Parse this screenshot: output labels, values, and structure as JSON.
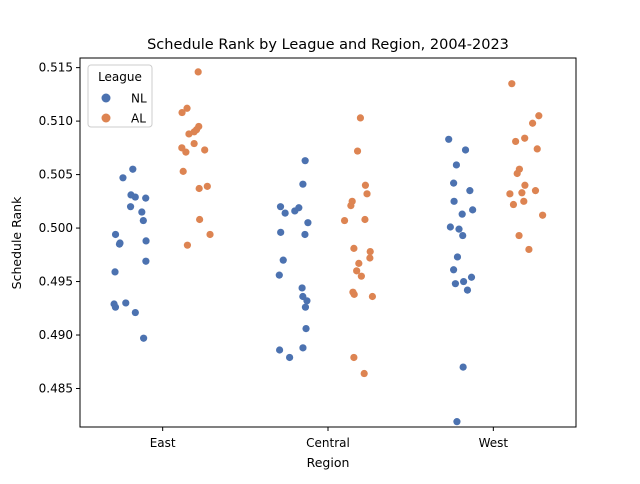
{
  "chart_data": {
    "type": "scatter",
    "subtype": "strip",
    "title": "Schedule Rank by League and Region, 2004-2023",
    "xlabel": "Region",
    "ylabel": "Schedule Rank",
    "categories": [
      "East",
      "Central",
      "West"
    ],
    "ylim": [
      0.4814,
      0.5159
    ],
    "yticks": [
      0.485,
      0.49,
      0.495,
      0.5,
      0.505,
      0.51,
      0.515
    ],
    "ytick_labels": [
      "0.485",
      "0.490",
      "0.495",
      "0.500",
      "0.505",
      "0.510",
      "0.515"
    ],
    "grid": false,
    "legend": {
      "title": "League",
      "position": "top-left"
    },
    "series": [
      {
        "name": "NL",
        "color": "#4c72b0",
        "values": {
          "East": [
            0.5055,
            0.5047,
            0.5031,
            0.5028,
            0.5029,
            0.502,
            0.5015,
            0.5007,
            0.4994,
            0.4988,
            0.4986,
            0.4985,
            0.4969,
            0.4959,
            0.493,
            0.4929,
            0.4926,
            0.4921,
            0.4897
          ],
          "Central": [
            0.5063,
            0.5041,
            0.502,
            0.5019,
            0.5016,
            0.5014,
            0.5005,
            0.4996,
            0.4994,
            0.497,
            0.4956,
            0.4944,
            0.4936,
            0.4932,
            0.4926,
            0.4906,
            0.4888,
            0.4886,
            0.4879
          ],
          "West": [
            0.5083,
            0.5073,
            0.5059,
            0.5042,
            0.5035,
            0.5025,
            0.5017,
            0.5013,
            0.5001,
            0.4999,
            0.4993,
            0.4973,
            0.4961,
            0.4954,
            0.495,
            0.4948,
            0.4942,
            0.487,
            0.4819
          ]
        }
      },
      {
        "name": "AL",
        "color": "#dd8452",
        "values": {
          "East": [
            0.5146,
            0.5112,
            0.5108,
            0.5095,
            0.5092,
            0.509,
            0.5088,
            0.5079,
            0.5075,
            0.5073,
            0.5071,
            0.5053,
            0.5039,
            0.5037,
            0.5008,
            0.4994,
            0.4984
          ],
          "Central": [
            0.5103,
            0.5072,
            0.504,
            0.5032,
            0.5025,
            0.5021,
            0.5008,
            0.5007,
            0.4981,
            0.4978,
            0.4972,
            0.4967,
            0.496,
            0.4955,
            0.494,
            0.4938,
            0.4936,
            0.4879,
            0.4864
          ],
          "West": [
            0.5135,
            0.5105,
            0.5098,
            0.5084,
            0.5081,
            0.5074,
            0.5055,
            0.5051,
            0.504,
            0.5035,
            0.5033,
            0.5032,
            0.5025,
            0.5022,
            0.5012,
            0.4993,
            0.498
          ]
        }
      }
    ]
  }
}
